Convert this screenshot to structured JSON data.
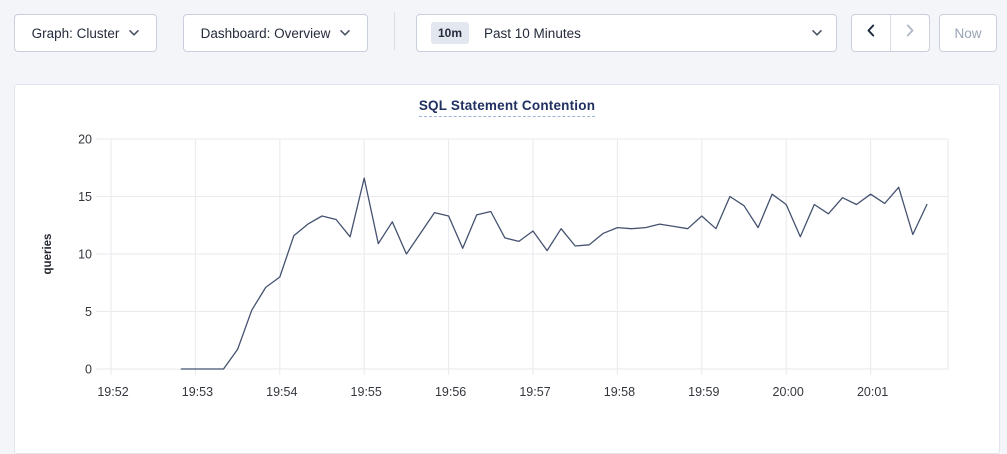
{
  "toolbar": {
    "graph_selector": {
      "label": "Graph: Cluster"
    },
    "dashboard_selector": {
      "label": "Dashboard: Overview"
    },
    "time_window_selector": {
      "badge": "10m",
      "value": "Past 10 Minutes"
    },
    "now_button": "Now"
  },
  "colors": {
    "page_bg": "#f4f5f9",
    "card_bg": "#ffffff",
    "card_border": "#e2e5ee",
    "control_border": "#c9cfdc",
    "text_dark": "#242b3b",
    "text_disabled": "#9aa3b4",
    "title_navy": "#203060",
    "title_underline": "#9db4d8",
    "badge_bg": "#e3e7f0",
    "divider": "#d9dde6",
    "tick_text": "#33373d"
  },
  "chart_data": {
    "type": "line",
    "title": "SQL Statement Contention",
    "xlabel": "",
    "ylabel": "queries",
    "ylim": [
      0,
      20
    ],
    "yticks": [
      0,
      5,
      10,
      15,
      20
    ],
    "xticks": [
      "19:52",
      "19:53",
      "19:54",
      "19:55",
      "19:56",
      "19:57",
      "19:58",
      "19:59",
      "20:00",
      "20:01"
    ],
    "grid": true,
    "legend_position": "none",
    "line_color": "#45526f",
    "grid_color": "#e9eaee",
    "series": [
      {
        "name": "queries",
        "start_time": "19:52:50",
        "interval_seconds": 10,
        "values": [
          0,
          0,
          0,
          0,
          1.7,
          5.1,
          7.1,
          8.0,
          11.6,
          12.6,
          13.3,
          13.0,
          11.5,
          16.6,
          10.9,
          12.8,
          10.0,
          11.8,
          13.6,
          13.3,
          10.5,
          13.4,
          13.7,
          11.4,
          11.1,
          12.0,
          10.3,
          12.2,
          10.7,
          10.8,
          11.8,
          12.3,
          12.2,
          12.3,
          12.6,
          12.4,
          12.2,
          13.3,
          12.2,
          15.0,
          14.2,
          12.3,
          15.2,
          14.3,
          11.5,
          14.3,
          13.5,
          14.9,
          14.3,
          15.2,
          14.4,
          15.8,
          11.7,
          14.3
        ]
      }
    ]
  }
}
